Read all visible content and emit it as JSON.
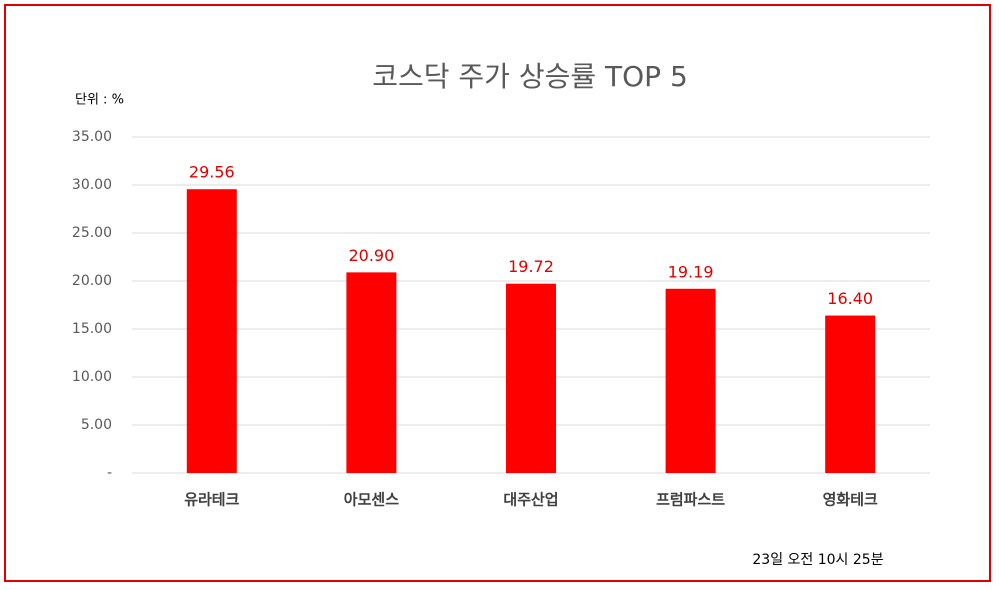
{
  "chart_data": {
    "type": "bar",
    "title": "코스닥 주가 상승률 TOP 5",
    "unit_label": "단위 : %",
    "categories": [
      "유라테크",
      "아모센스",
      "대주산업",
      "프럼파스트",
      "영화테크"
    ],
    "values": [
      29.56,
      20.9,
      19.72,
      19.19,
      16.4
    ],
    "value_labels": [
      "29.56",
      "20.90",
      "19.72",
      "19.19",
      "16.40"
    ],
    "color": "#ff0000",
    "ylim": [
      0,
      35
    ],
    "yticks": [
      {
        "value": 0,
        "label": "-"
      },
      {
        "value": 5,
        "label": "5.00"
      },
      {
        "value": 10,
        "label": "10.00"
      },
      {
        "value": 15,
        "label": "15.00"
      },
      {
        "value": 20,
        "label": "20.00"
      },
      {
        "value": 25,
        "label": "25.00"
      },
      {
        "value": 30,
        "label": "30.00"
      },
      {
        "value": 35,
        "label": "35.00"
      }
    ],
    "grid": true,
    "footnote": "23일 오전 10시 25분"
  }
}
